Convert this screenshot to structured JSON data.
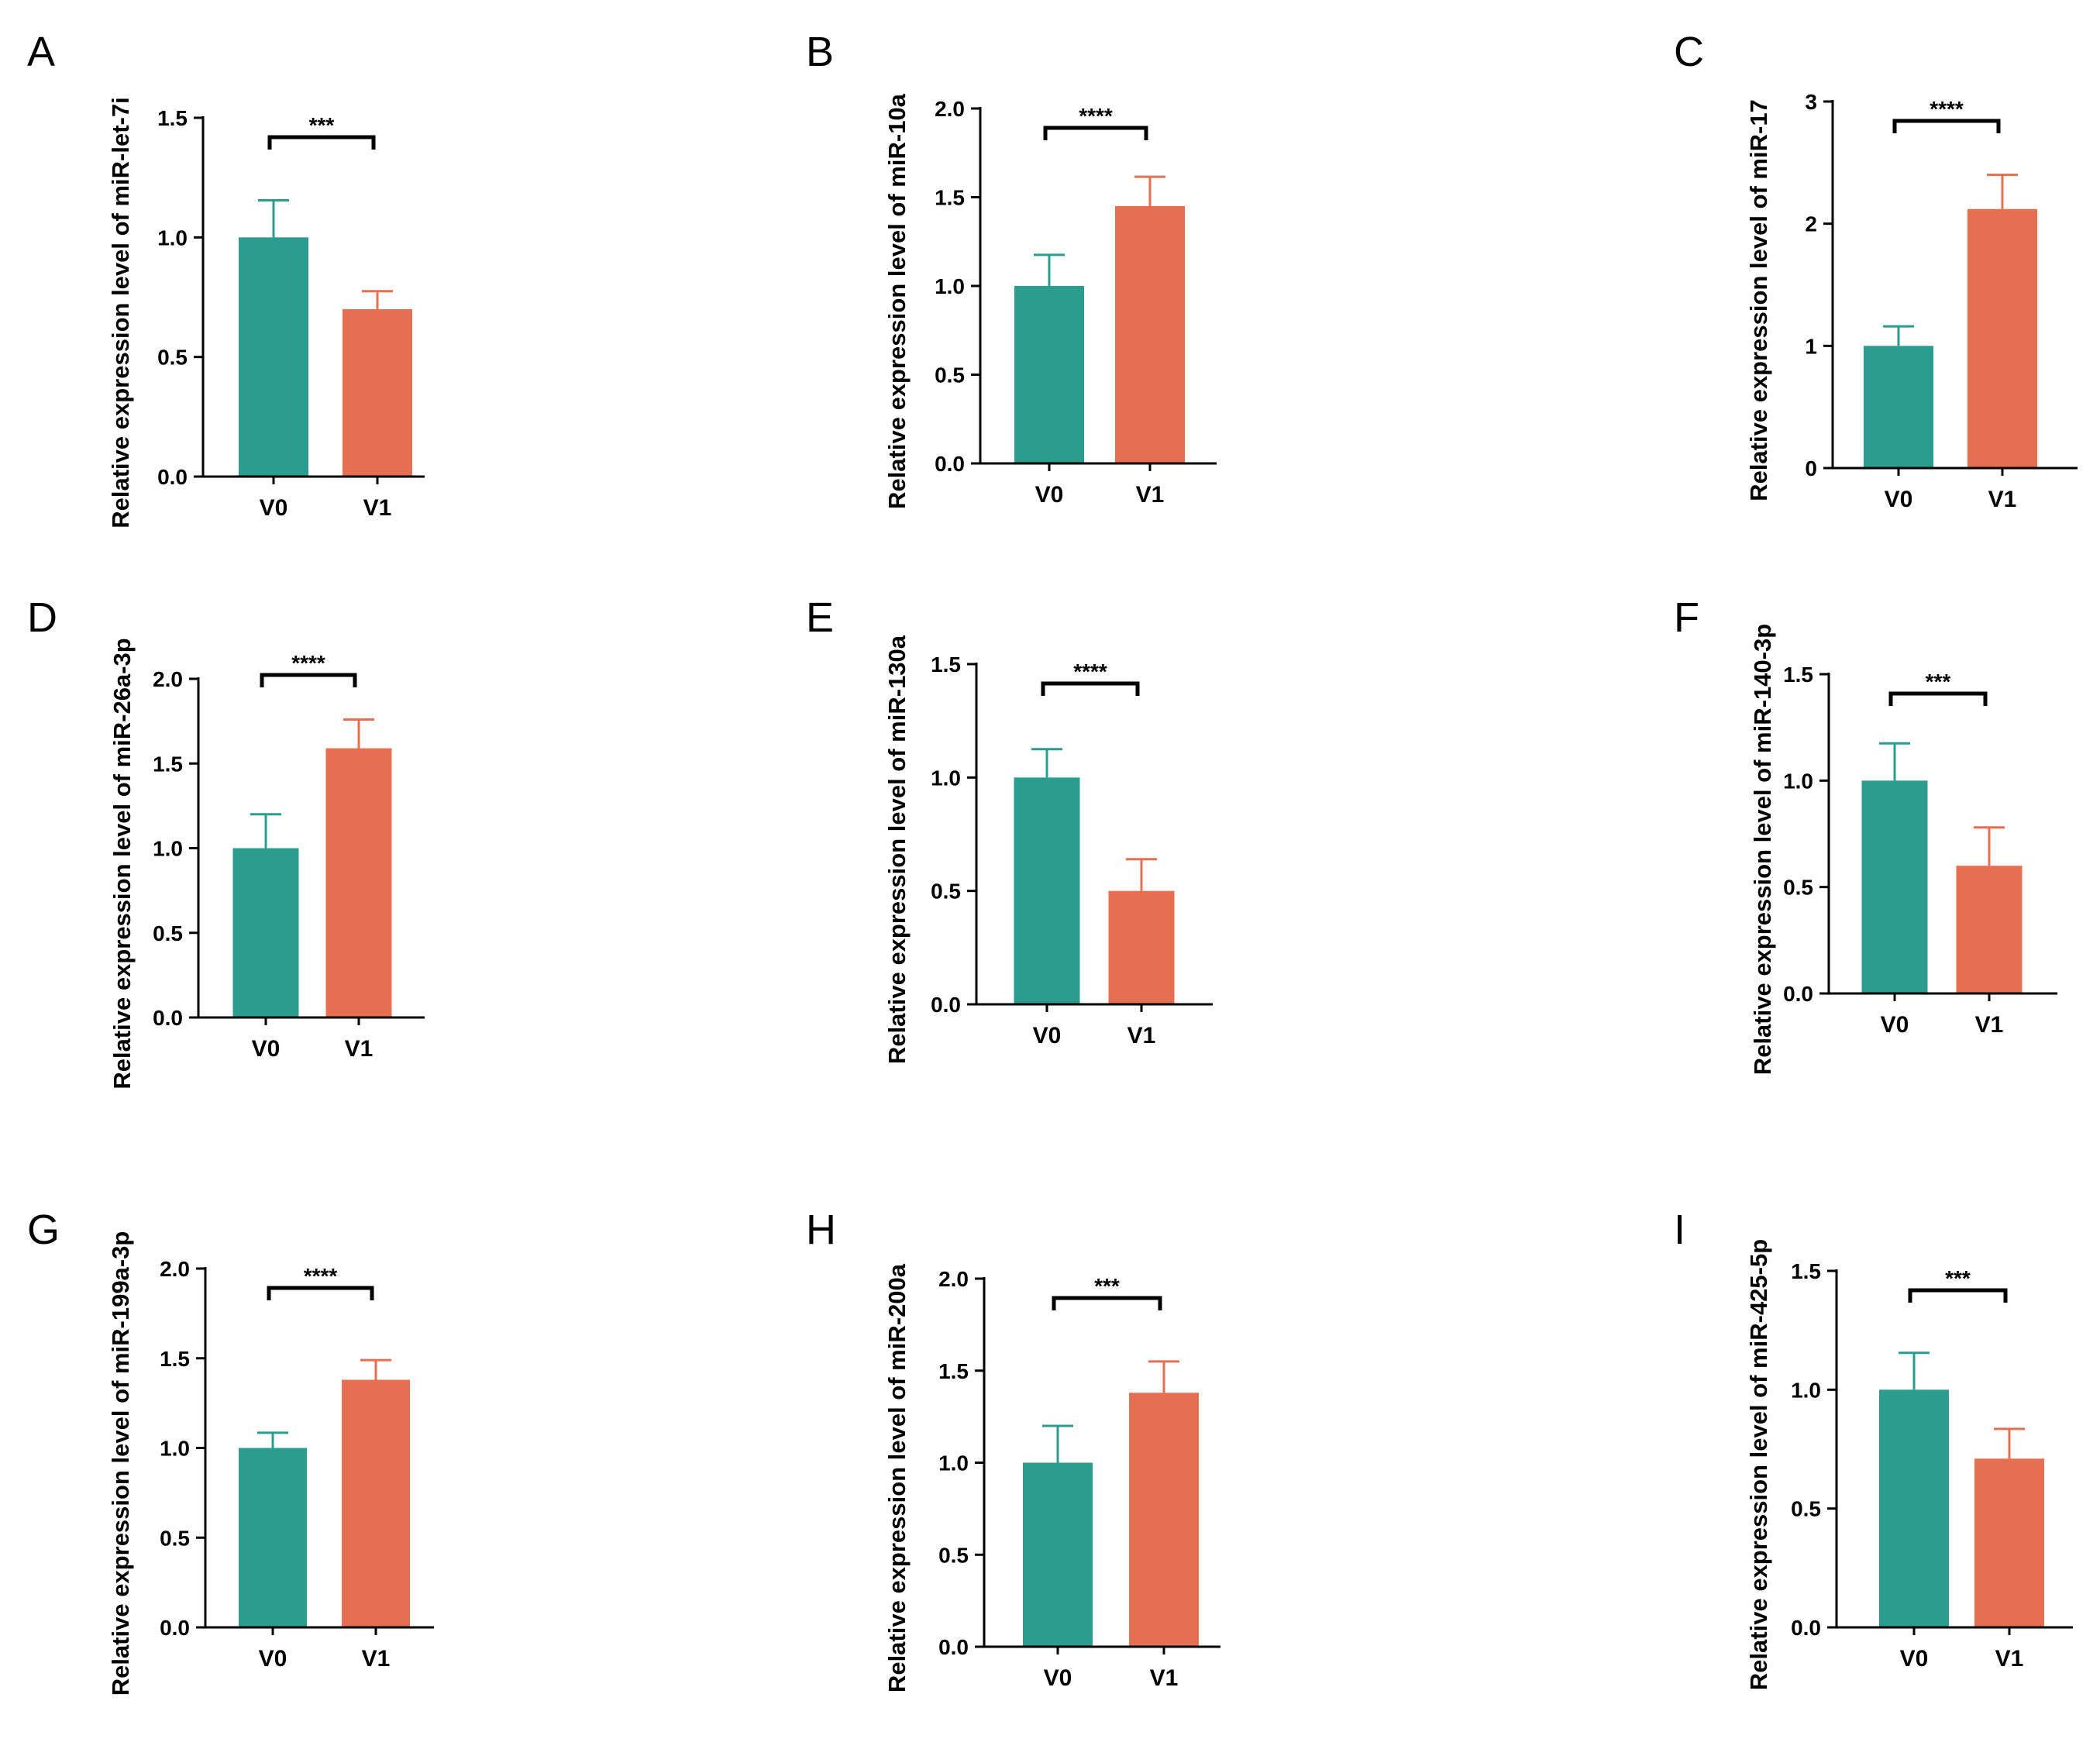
{
  "colors": {
    "V0": "#2a9d8f",
    "V1": "#e76f51",
    "axis": "#000000"
  },
  "chart_data": [
    {
      "panel": "A",
      "type": "bar",
      "title": "",
      "ylabel": "Relative expression level of miR-let-7i",
      "categories": [
        "V0",
        "V1"
      ],
      "values": [
        1.0,
        0.7
      ],
      "errors": [
        0.155,
        0.075
      ],
      "ylim": [
        0,
        1.5
      ],
      "yticks": [
        0.0,
        0.5,
        1.0,
        1.5
      ],
      "tick_labels": [
        "0.0",
        "0.5",
        "1.0",
        "1.5"
      ],
      "significance": "***"
    },
    {
      "panel": "B",
      "type": "bar",
      "title": "",
      "ylabel": "Relative expression level of miR-10a",
      "categories": [
        "V0",
        "V1"
      ],
      "values": [
        1.0,
        1.45
      ],
      "errors": [
        0.175,
        0.165
      ],
      "ylim": [
        0,
        2.0
      ],
      "yticks": [
        0.0,
        0.5,
        1.0,
        1.5,
        2.0
      ],
      "tick_labels": [
        "0.0",
        "0.5",
        "1.0",
        "1.5",
        "2.0"
      ],
      "significance": "****"
    },
    {
      "panel": "C",
      "type": "bar",
      "title": "",
      "ylabel": "Relative expression level of miR-17",
      "categories": [
        "V0",
        "V1"
      ],
      "values": [
        1.0,
        2.12
      ],
      "errors": [
        0.16,
        0.28
      ],
      "ylim": [
        0,
        3
      ],
      "yticks": [
        0,
        1,
        2,
        3
      ],
      "tick_labels": [
        "0",
        "1",
        "2",
        "3"
      ],
      "significance": "****"
    },
    {
      "panel": "D",
      "type": "bar",
      "title": "",
      "ylabel": "Relative expression level of miR-26a-3p",
      "categories": [
        "V0",
        "V1"
      ],
      "values": [
        1.0,
        1.59
      ],
      "errors": [
        0.2,
        0.17
      ],
      "ylim": [
        0,
        2.0
      ],
      "yticks": [
        0.0,
        0.5,
        1.0,
        1.5,
        2.0
      ],
      "tick_labels": [
        "0.0",
        "0.5",
        "1.0",
        "1.5",
        "2.0"
      ],
      "significance": "****"
    },
    {
      "panel": "E",
      "type": "bar",
      "title": "",
      "ylabel": "Relative expression level of miR-130a",
      "categories": [
        "V0",
        "V1"
      ],
      "values": [
        1.0,
        0.5
      ],
      "errors": [
        0.125,
        0.14
      ],
      "ylim": [
        0,
        1.5
      ],
      "yticks": [
        0.0,
        0.5,
        1.0,
        1.5
      ],
      "tick_labels": [
        "0.0",
        "0.5",
        "1.0",
        "1.5"
      ],
      "significance": "****"
    },
    {
      "panel": "F",
      "type": "bar",
      "title": "",
      "ylabel": "Relative expression level of miR-140-3p",
      "categories": [
        "V0",
        "V1"
      ],
      "values": [
        1.0,
        0.6
      ],
      "errors": [
        0.175,
        0.18
      ],
      "ylim": [
        0,
        1.5
      ],
      "yticks": [
        0.0,
        0.5,
        1.0,
        1.5
      ],
      "tick_labels": [
        "0.0",
        "0.5",
        "1.0",
        "1.5"
      ],
      "significance": "***"
    },
    {
      "panel": "G",
      "type": "bar",
      "title": "",
      "ylabel": "Relative expression level of miR-199a-3p",
      "categories": [
        "V0",
        "V1"
      ],
      "values": [
        1.0,
        1.38
      ],
      "errors": [
        0.085,
        0.11
      ],
      "ylim": [
        0,
        2.0
      ],
      "yticks": [
        0.0,
        0.5,
        1.0,
        1.5,
        2.0
      ],
      "tick_labels": [
        "0.0",
        "0.5",
        "1.0",
        "1.5",
        "2.0"
      ],
      "significance": "****"
    },
    {
      "panel": "H",
      "type": "bar",
      "title": "",
      "ylabel": "Relative expression level of miR-200a",
      "categories": [
        "V0",
        "V1"
      ],
      "values": [
        1.0,
        1.38
      ],
      "errors": [
        0.2,
        0.17
      ],
      "ylim": [
        0,
        2.0
      ],
      "yticks": [
        0.0,
        0.5,
        1.0,
        1.5,
        2.0
      ],
      "tick_labels": [
        "0.0",
        "0.5",
        "1.0",
        "1.5",
        "2.0"
      ],
      "significance": "***"
    },
    {
      "panel": "I",
      "type": "bar",
      "title": "",
      "ylabel": "Relative expression level of miR-425-5p",
      "categories": [
        "V0",
        "V1"
      ],
      "values": [
        1.0,
        0.71
      ],
      "errors": [
        0.155,
        0.125
      ],
      "ylim": [
        0,
        1.5
      ],
      "yticks": [
        0.0,
        0.5,
        1.0,
        1.5
      ],
      "tick_labels": [
        "0.0",
        "0.5",
        "1.0",
        "1.5"
      ],
      "significance": "***"
    }
  ]
}
